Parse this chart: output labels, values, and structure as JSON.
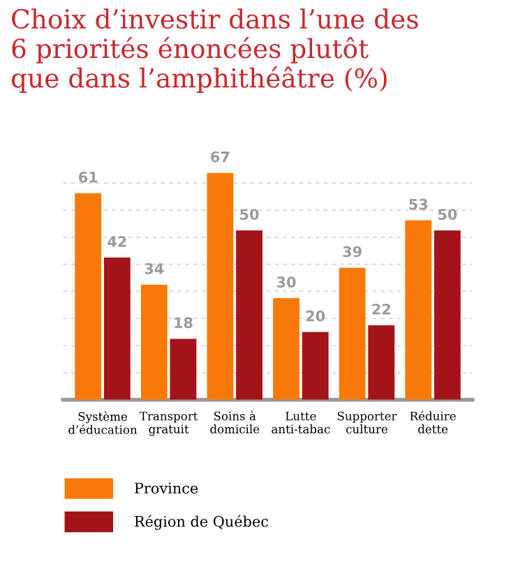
{
  "chart_data": {
    "type": "bar",
    "title": "Choix d’investir dans l’une des\n6 priorités énoncées plutôt\nque dans l’amphithéâtre (%)",
    "categories": [
      "Système\nd’éducation",
      "Transport\ngratuit",
      "Soins à\ndomicile",
      "Lutte\nanti-tabac",
      "Supporter\nculture",
      "Réduire\ndette"
    ],
    "series": [
      {
        "name": "Province",
        "color": "#f77a08",
        "values": [
          61,
          34,
          67,
          30,
          39,
          53
        ]
      },
      {
        "name": "Région de Québec",
        "color": "#a3141a",
        "values": [
          42,
          18,
          50,
          20,
          22,
          50
        ]
      }
    ],
    "yticks": [
      {
        "value": 8,
        "label": null
      },
      {
        "value": 16,
        "label": null
      },
      {
        "value": 24,
        "label": null
      },
      {
        "value": 32,
        "label": null
      },
      {
        "value": 40,
        "label": null
      },
      {
        "value": 48,
        "label": null
      },
      {
        "value": 56,
        "label": null
      },
      {
        "value": 64,
        "label": null
      }
    ],
    "tick_labels": "x",
    "grid": "y",
    "data_labels": true,
    "legend": "bottom left"
  }
}
